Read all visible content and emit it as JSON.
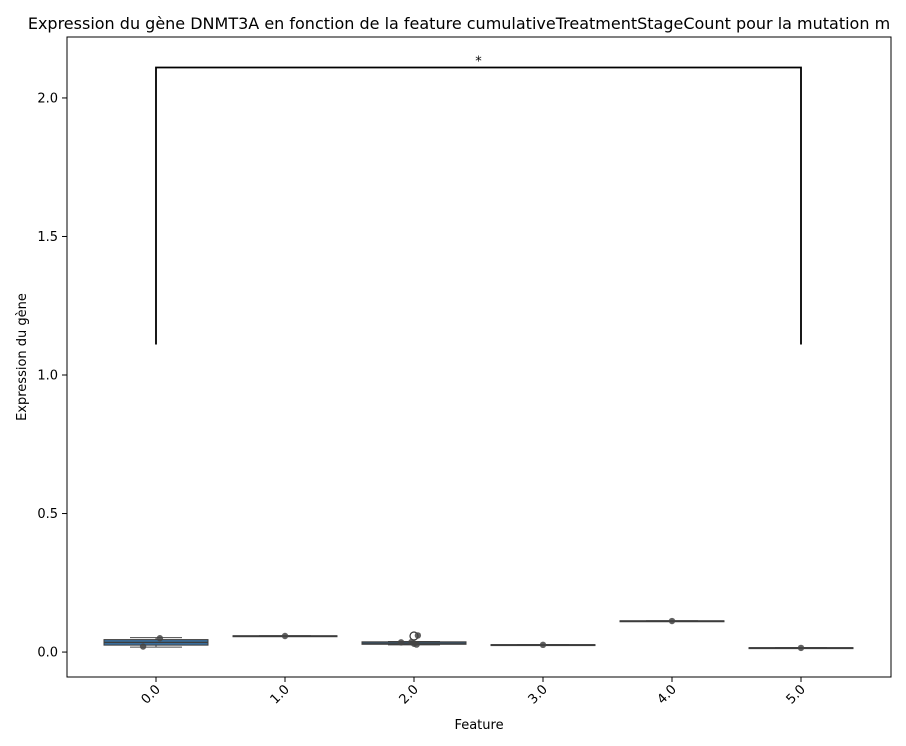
{
  "chart_data": {
    "type": "box",
    "title": "Expression du gène DNMT3A en fonction de la feature cumulativeTreatmentStageCount pour la mutation m",
    "xlabel": "Feature",
    "ylabel": "Expression du gène",
    "categories": [
      "0.0",
      "1.0",
      "2.0",
      "3.0",
      "4.0",
      "5.0"
    ],
    "ylim": [
      -0.09,
      2.22
    ],
    "yticks": [
      "0.0",
      "0.5",
      "1.0",
      "1.5",
      "2.0"
    ],
    "grid": false,
    "box_color": "#3a6e9c",
    "boxes": [
      {
        "q1": 0.025,
        "median": 0.035,
        "q3": 0.045,
        "whisker_low": 0.018,
        "whisker_high": 0.052,
        "outliers": []
      },
      {
        "q1": 0.057,
        "median": 0.058,
        "q3": 0.059,
        "whisker_low": 0.057,
        "whisker_high": 0.059,
        "outliers": []
      },
      {
        "q1": 0.028,
        "median": 0.032,
        "q3": 0.037,
        "whisker_low": 0.026,
        "whisker_high": 0.038,
        "outliers": [
          0.058
        ]
      },
      {
        "q1": 0.025,
        "median": 0.026,
        "q3": 0.027,
        "whisker_low": 0.025,
        "whisker_high": 0.027,
        "outliers": []
      },
      {
        "q1": 0.111,
        "median": 0.112,
        "q3": 0.113,
        "whisker_low": 0.111,
        "whisker_high": 0.113,
        "outliers": []
      },
      {
        "q1": 0.014,
        "median": 0.015,
        "q3": 0.016,
        "whisker_low": 0.014,
        "whisker_high": 0.016,
        "outliers": []
      }
    ],
    "points": [
      {
        "category": 0,
        "offset": 0.03,
        "value": 0.05
      },
      {
        "category": 0,
        "offset": -0.1,
        "value": 0.02
      },
      {
        "category": 1,
        "offset": 0.0,
        "value": 0.058
      },
      {
        "category": 2,
        "offset": -0.1,
        "value": 0.035
      },
      {
        "category": 2,
        "offset": -0.02,
        "value": 0.036
      },
      {
        "category": 2,
        "offset": 0.0,
        "value": 0.03
      },
      {
        "category": 2,
        "offset": 0.02,
        "value": 0.027
      },
      {
        "category": 2,
        "offset": 0.03,
        "value": 0.06
      },
      {
        "category": 3,
        "offset": 0.0,
        "value": 0.026
      },
      {
        "category": 4,
        "offset": 0.0,
        "value": 0.112
      },
      {
        "category": 5,
        "offset": 0.0,
        "value": 0.015
      }
    ],
    "annotations": [
      {
        "from": 0,
        "to": 5,
        "y_low": 1.11,
        "y_high": 2.11,
        "text": "*"
      }
    ]
  }
}
